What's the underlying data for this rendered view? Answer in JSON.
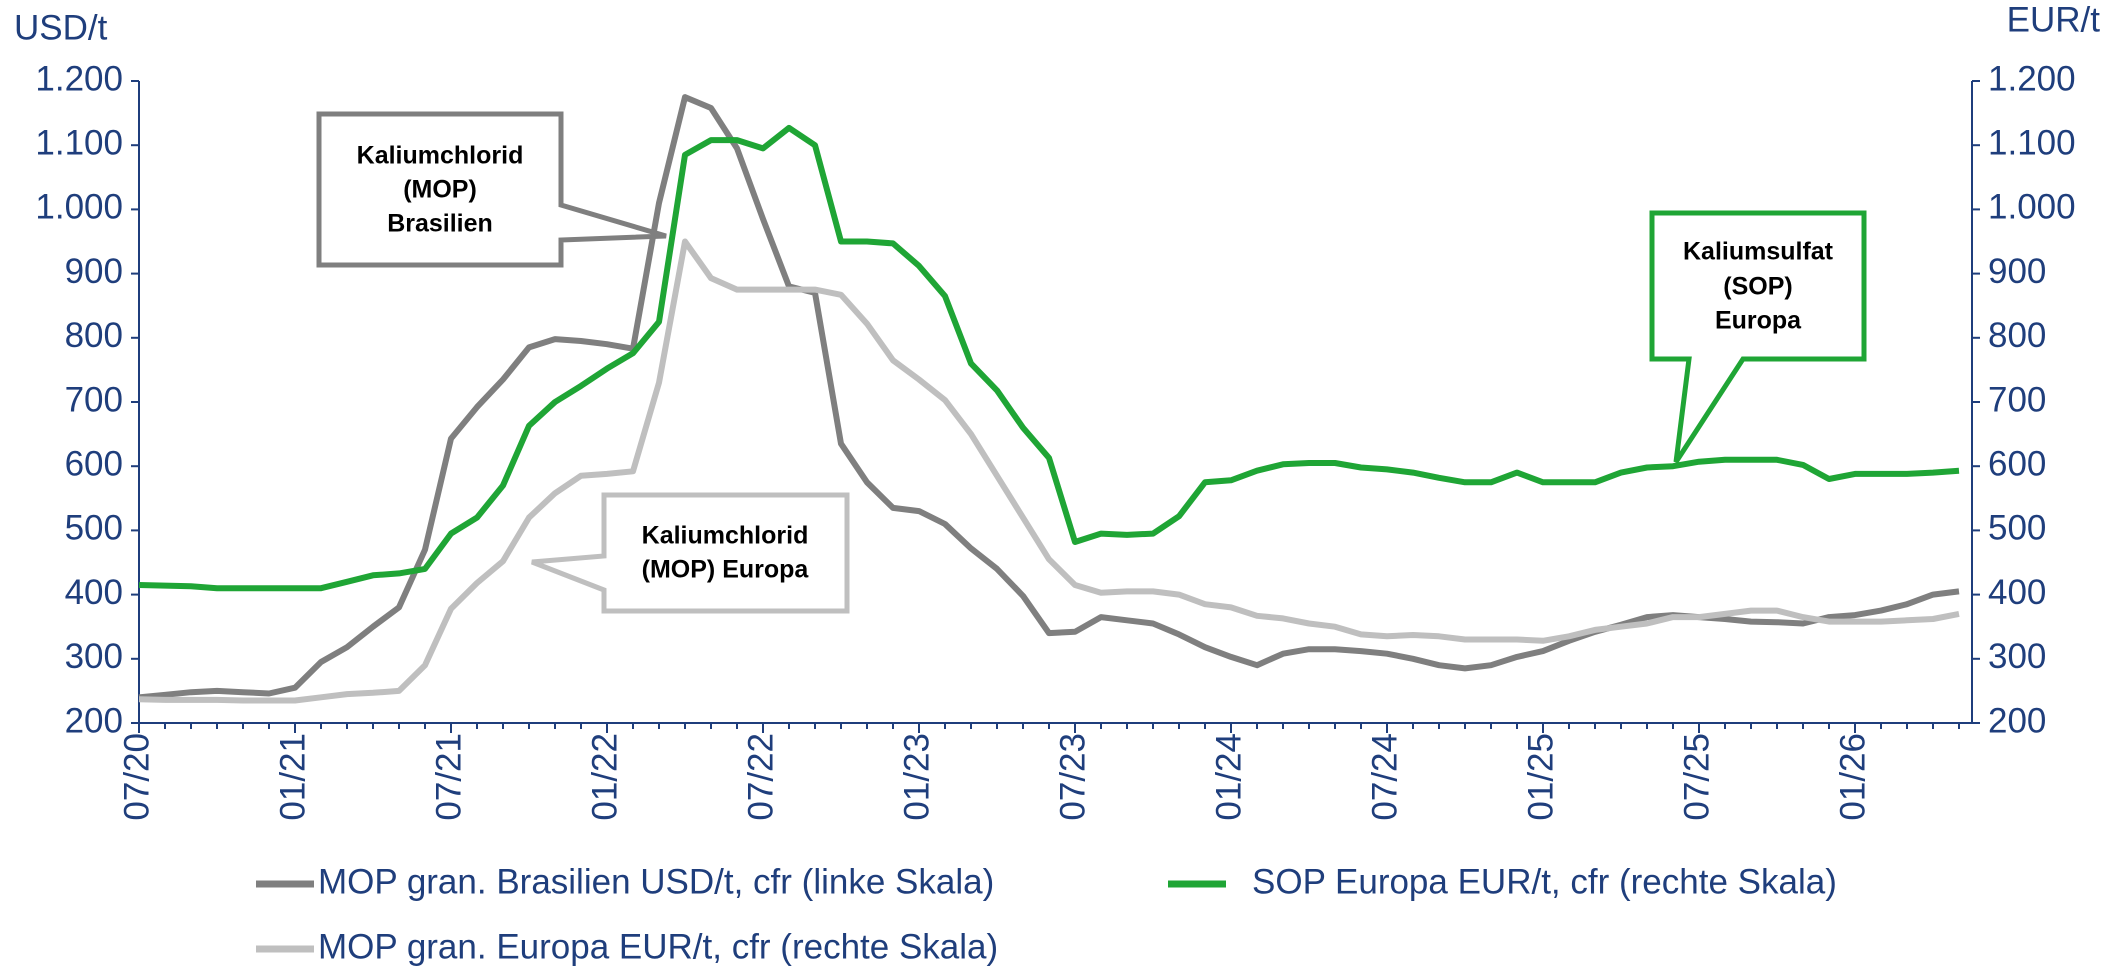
{
  "chart_data": {
    "type": "line",
    "y_label": "USD/t",
    "y2_label": "EUR/t",
    "categories": [
      "07/20",
      null,
      null,
      null,
      null,
      null,
      "01/21",
      null,
      null,
      null,
      null,
      null,
      "07/21",
      null,
      null,
      null,
      null,
      null,
      "01/22",
      null,
      null,
      null,
      null,
      null,
      "07/22",
      null,
      null,
      null,
      null,
      null,
      "01/23",
      null,
      null,
      null,
      null,
      null,
      "07/23",
      null,
      null,
      null,
      null,
      null,
      "01/24",
      null,
      null,
      null,
      null,
      null,
      "07/24",
      null,
      null,
      null,
      null,
      null,
      "01/25",
      null,
      null,
      null,
      null,
      null,
      "07/25",
      null,
      null,
      null,
      null,
      null,
      "01/26",
      null,
      null,
      null,
      null
    ],
    "ylim": [
      200,
      1200
    ],
    "y2lim": [
      200,
      1200
    ],
    "yticks": [
      200,
      300,
      400,
      500,
      600,
      700,
      800,
      900,
      {
        "value": 1000,
        "label": "1.000"
      },
      {
        "value": 1100,
        "label": "1.100"
      },
      {
        "value": 1200,
        "label": "1.200"
      }
    ],
    "y2ticks": [
      200,
      300,
      400,
      500,
      600,
      700,
      800,
      900,
      {
        "value": 1000,
        "label": "1.000"
      },
      {
        "value": 1100,
        "label": "1.100"
      },
      {
        "value": 1200,
        "label": "1.200"
      }
    ],
    "series": [
      {
        "name": "MOP gran. Brasilien USD/t, cfr (linke Skala)",
        "color": "#7f7f7f",
        "axis": "y",
        "values": [
          240,
          244,
          248,
          250,
          248,
          246,
          255,
          295,
          318,
          350,
          380,
          470,
          643,
          692,
          735,
          785,
          798,
          795,
          790,
          783,
          1010,
          1175,
          1158,
          1095,
          985,
          880,
          870,
          635,
          575,
          535,
          530,
          510,
          472,
          440,
          398,
          340,
          342,
          365,
          360,
          355,
          338,
          318,
          303,
          290,
          308,
          315,
          315,
          312,
          308,
          300,
          290,
          285,
          290,
          303,
          312,
          328,
          342,
          353,
          365,
          368,
          365,
          362,
          358,
          357,
          355,
          365,
          368,
          375,
          385,
          400,
          405
        ]
      },
      {
        "name": "SOP Europa EUR/t, cfr (rechte Skala)",
        "color": "#1fa535",
        "axis": "y2",
        "values": [
          415,
          414,
          413,
          410,
          410,
          410,
          410,
          410,
          420,
          430,
          433,
          440,
          495,
          520,
          570,
          663,
          700,
          725,
          752,
          776,
          825,
          1085,
          1108,
          1108,
          1095,
          1127,
          1100,
          950,
          950,
          947,
          912,
          865,
          760,
          718,
          660,
          613,
          482,
          495,
          493,
          495,
          522,
          575,
          578,
          593,
          603,
          605,
          605,
          598,
          595,
          590,
          582,
          575,
          575,
          590,
          575,
          575,
          575,
          590,
          598,
          600,
          607,
          610,
          610,
          610,
          602,
          580,
          588,
          588,
          588,
          590,
          593
        ]
      },
      {
        "name": "MOP gran. Europa EUR/t, cfr (rechte Skala)",
        "color": "#bfbfbf",
        "axis": "y2",
        "values": [
          237,
          236,
          236,
          236,
          235,
          235,
          235,
          240,
          245,
          247,
          250,
          290,
          378,
          418,
          452,
          520,
          558,
          585,
          588,
          592,
          730,
          950,
          893,
          875,
          875,
          875,
          875,
          867,
          822,
          765,
          735,
          703,
          650,
          585,
          520,
          455,
          415,
          403,
          405,
          405,
          400,
          385,
          380,
          367,
          363,
          355,
          350,
          338,
          335,
          337,
          335,
          330,
          330,
          330,
          328,
          335,
          345,
          350,
          355,
          365,
          365,
          370,
          375,
          375,
          365,
          358,
          358,
          358,
          360,
          362,
          370
        ]
      }
    ],
    "annotations": [
      {
        "lines": [
          "Kaliumchlorid",
          "(MOP)",
          "Brasilien"
        ],
        "color": "#7f7f7f"
      },
      {
        "lines": [
          "Kaliumchlorid",
          "(MOP) Europa"
        ],
        "color": "#bfbfbf"
      },
      {
        "lines": [
          "Kaliumsulfat",
          "(SOP)",
          "Europa"
        ],
        "color": "#1fa535"
      }
    ]
  }
}
